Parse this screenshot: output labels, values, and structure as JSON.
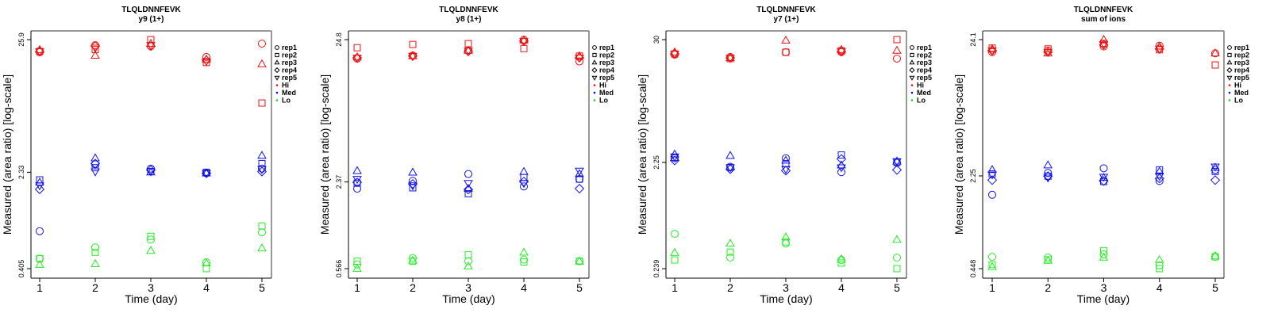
{
  "chart_data": [
    {
      "type": "scatter",
      "title": "TLQLDNNFEVK",
      "subtitle": "y9 (1+)",
      "xlabel": "Time (day)",
      "ylabel": "Measured (area ratio) [log-scale]",
      "yscale": "log",
      "xlim": [
        1,
        5
      ],
      "ylim": [
        0.405,
        25.9
      ],
      "x_ticks": [
        "1",
        "2",
        "3",
        "4",
        "5"
      ],
      "y_ticks": [
        {
          "value": 0.405,
          "label": "0.405"
        },
        {
          "value": 2.33,
          "label": "2.33"
        },
        {
          "value": 25.9,
          "label": "25.9"
        }
      ],
      "legend": [
        "rep1",
        "rep2",
        "rep3",
        "rep4",
        "rep5",
        "Hi",
        "Med",
        "Lo"
      ],
      "legend_position": "right",
      "series": [
        {
          "level": "Hi",
          "rep": "rep1",
          "x": [
            1,
            2,
            3,
            4,
            5
          ],
          "y": [
            20.6,
            23.4,
            23.0,
            18.9,
            24.1
          ]
        },
        {
          "level": "Hi",
          "rep": "rep2",
          "x": [
            1,
            2,
            3,
            4,
            5
          ],
          "y": [
            20.9,
            21.6,
            25.9,
            17.1,
            8.19
          ]
        },
        {
          "level": "Hi",
          "rep": "rep3",
          "x": [
            1,
            2,
            3,
            4,
            5
          ],
          "y": [
            21.5,
            19.4,
            24.1,
            18.1,
            16.6
          ]
        },
        {
          "level": "Hi",
          "rep": "rep4",
          "x": [
            1,
            2,
            3,
            4
          ],
          "y": [
            20.9,
            23.0,
            23.0,
            17.8
          ]
        },
        {
          "level": "Hi",
          "rep": "rep5",
          "x": [
            1,
            2,
            3,
            4
          ],
          "y": [
            20.9,
            22.3,
            23.4,
            17.5
          ]
        },
        {
          "level": "Med",
          "rep": "rep1",
          "x": [
            1,
            2,
            3,
            4,
            5
          ],
          "y": [
            0.8,
            2.69,
            2.49,
            2.29,
            2.49
          ]
        },
        {
          "level": "Med",
          "rep": "rep2",
          "x": [
            1,
            2,
            3,
            4,
            5
          ],
          "y": [
            2.03,
            2.53,
            2.36,
            2.33,
            2.73
          ]
        },
        {
          "level": "Med",
          "rep": "rep3",
          "x": [
            1,
            2,
            3,
            4,
            5
          ],
          "y": [
            1.94,
            3.01,
            2.33,
            2.29,
            3.15
          ]
        },
        {
          "level": "Med",
          "rep": "rep4",
          "x": [
            1,
            2,
            3,
            4,
            5
          ],
          "y": [
            1.71,
            2.73,
            2.43,
            2.29,
            2.36
          ]
        },
        {
          "level": "Med",
          "rep": "rep5",
          "x": [
            1,
            2,
            3,
            4,
            5
          ],
          "y": [
            1.83,
            2.36,
            2.36,
            2.29,
            2.46
          ]
        },
        {
          "level": "Lo",
          "rep": "rep1",
          "x": [
            1,
            2,
            3,
            4,
            5
          ],
          "y": [
            0.486,
            0.595,
            0.687,
            0.454,
            0.783
          ]
        },
        {
          "level": "Lo",
          "rep": "rep2",
          "x": [
            1,
            2,
            3,
            4,
            5
          ],
          "y": [
            0.486,
            0.545,
            0.728,
            0.405,
            0.879
          ]
        },
        {
          "level": "Lo",
          "rep": "rep3",
          "x": [
            1,
            2,
            3,
            4,
            5
          ],
          "y": [
            0.435,
            0.441,
            0.561,
            0.447,
            0.587
          ]
        }
      ]
    },
    {
      "type": "scatter",
      "title": "TLQLDNNFEVK",
      "subtitle": "y8 (1+)",
      "xlabel": "Time (day)",
      "ylabel": "Measured (area ratio) [log-scale]",
      "yscale": "log",
      "xlim": [
        1,
        5
      ],
      "ylim": [
        0.566,
        24.8
      ],
      "x_ticks": [
        "1",
        "2",
        "3",
        "4",
        "5"
      ],
      "y_ticks": [
        {
          "value": 0.566,
          "label": "0.566"
        },
        {
          "value": 2.37,
          "label": "2.37"
        },
        {
          "value": 24.8,
          "label": "24.8"
        }
      ],
      "legend": [
        "rep1",
        "rep2",
        "rep3",
        "rep4",
        "rep5",
        "Hi",
        "Med",
        "Lo"
      ],
      "legend_position": "right",
      "series": [
        {
          "level": "Hi",
          "rep": "rep1",
          "x": [
            1,
            2,
            3,
            4,
            5
          ],
          "y": [
            18.1,
            19.1,
            20.7,
            24.8,
            17.3
          ]
        },
        {
          "level": "Hi",
          "rep": "rep2",
          "x": [
            1,
            2,
            3,
            4,
            5
          ],
          "y": [
            21.7,
            22.9,
            23.2,
            21.4,
            18.9
          ]
        },
        {
          "level": "Hi",
          "rep": "rep3",
          "x": [
            1,
            2,
            3,
            4,
            5
          ],
          "y": [
            18.6,
            18.9,
            20.7,
            24.5,
            18.9
          ]
        },
        {
          "level": "Hi",
          "rep": "rep4",
          "x": [
            1,
            2,
            3,
            4,
            5
          ],
          "y": [
            18.4,
            18.9,
            20.4,
            24.2,
            18.4
          ]
        },
        {
          "level": "Hi",
          "rep": "rep5",
          "x": [
            1,
            2,
            3,
            4,
            5
          ],
          "y": [
            18.4,
            18.9,
            20.7,
            24.2,
            18.4
          ]
        },
        {
          "level": "Med",
          "rep": "rep1",
          "x": [
            1,
            2,
            3,
            4,
            5
          ],
          "y": [
            2.12,
            2.41,
            2.7,
            2.2,
            2.48
          ]
        },
        {
          "level": "Med",
          "rep": "rep2",
          "x": [
            1,
            2,
            3,
            4,
            5
          ],
          "y": [
            2.32,
            2.15,
            1.95,
            2.55,
            2.48
          ]
        },
        {
          "level": "Med",
          "rep": "rep3",
          "x": [
            1,
            2,
            3,
            4,
            5
          ],
          "y": [
            2.84,
            2.77,
            2.12,
            2.8,
            2.7
          ]
        },
        {
          "level": "Med",
          "rep": "rep4",
          "x": [
            1,
            2,
            3,
            4,
            5
          ],
          "y": [
            2.35,
            2.29,
            2.09,
            2.38,
            2.12
          ]
        },
        {
          "level": "Med",
          "rep": "rep5",
          "x": [
            1,
            2,
            3,
            4,
            5
          ],
          "y": [
            2.48,
            2.23,
            2.32,
            2.32,
            2.84
          ]
        },
        {
          "level": "Lo",
          "rep": "rep1",
          "x": [
            1,
            2,
            3,
            4,
            5
          ],
          "y": [
            0.607,
            0.674,
            0.64,
            0.657,
            0.64
          ]
        },
        {
          "level": "Lo",
          "rep": "rep2",
          "x": [
            1,
            2,
            3,
            4,
            5
          ],
          "y": [
            0.64,
            0.64,
            0.711,
            0.632,
            0.64
          ]
        },
        {
          "level": "Lo",
          "rep": "rep3",
          "x": [
            1,
            2,
            3,
            4,
            5
          ],
          "y": [
            0.566,
            0.648,
            0.589,
            0.74,
            0.64
          ]
        }
      ]
    },
    {
      "type": "scatter",
      "title": "TLQLDNNFEVK",
      "subtitle": "y7 (1+)",
      "xlabel": "Time (day)",
      "ylabel": "Measured (area ratio) [log-scale]",
      "yscale": "log",
      "xlim": [
        1,
        5
      ],
      "ylim": [
        0.239,
        30
      ],
      "x_ticks": [
        "1",
        "2",
        "3",
        "4",
        "5"
      ],
      "y_ticks": [
        {
          "value": 0.239,
          "label": "0.239"
        },
        {
          "value": 2.25,
          "label": "2.25"
        },
        {
          "value": 30,
          "label": "30"
        }
      ],
      "legend": [
        "rep1",
        "rep2",
        "rep3",
        "rep4",
        "rep5",
        "Hi",
        "Med",
        "Lo"
      ],
      "legend_position": "right",
      "series": [
        {
          "level": "Hi",
          "rep": "rep1",
          "x": [
            1,
            2,
            3,
            4,
            5
          ],
          "y": [
            21.9,
            20.8,
            23.0,
            23.0,
            20.1
          ]
        },
        {
          "level": "Hi",
          "rep": "rep2",
          "x": [
            1,
            2,
            3,
            4,
            5
          ],
          "y": [
            22.2,
            20.1,
            23.0,
            23.8,
            30.0
          ]
        },
        {
          "level": "Hi",
          "rep": "rep3",
          "x": [
            1,
            2,
            3,
            4,
            5
          ],
          "y": [
            23.0,
            20.4,
            29.5,
            24.2,
            23.8
          ]
        },
        {
          "level": "Hi",
          "rep": "rep4",
          "x": [
            1,
            2,
            4
          ],
          "y": [
            22.2,
            20.4,
            23.4
          ]
        },
        {
          "level": "Hi",
          "rep": "rep5",
          "x": [
            1,
            2,
            4
          ],
          "y": [
            22.2,
            20.4,
            23.4
          ]
        },
        {
          "level": "Med",
          "rep": "rep1",
          "x": [
            1,
            2,
            3,
            4,
            5
          ],
          "y": [
            2.46,
            2.05,
            2.46,
            1.83,
            2.23
          ]
        },
        {
          "level": "Med",
          "rep": "rep2",
          "x": [
            1,
            2,
            3,
            4,
            5
          ],
          "y": [
            2.5,
            2.02,
            2.19,
            2.63,
            2.26
          ]
        },
        {
          "level": "Med",
          "rep": "rep3",
          "x": [
            1,
            2,
            3,
            4,
            5
          ],
          "y": [
            2.67,
            2.59,
            2.34,
            2.12,
            2.3
          ]
        },
        {
          "level": "Med",
          "rep": "rep4",
          "x": [
            1,
            2,
            3,
            4,
            5
          ],
          "y": [
            2.34,
            1.95,
            1.89,
            2.42,
            1.92
          ]
        },
        {
          "level": "Med",
          "rep": "rep5",
          "x": [
            1,
            2,
            3,
            4,
            5
          ],
          "y": [
            2.54,
            2.02,
            1.95,
            2.02,
            2.3
          ]
        },
        {
          "level": "Lo",
          "rep": "rep1",
          "x": [
            1,
            2,
            3,
            4,
            5
          ],
          "y": [
            0.498,
            0.302,
            0.406,
            0.287,
            0.302
          ]
        },
        {
          "level": "Lo",
          "rep": "rep2",
          "x": [
            1,
            2,
            3,
            4,
            5
          ],
          "y": [
            0.287,
            0.339,
            0.42,
            0.269,
            0.239
          ]
        },
        {
          "level": "Lo",
          "rep": "rep3",
          "x": [
            1,
            2,
            3,
            4,
            5
          ],
          "y": [
            0.334,
            0.406,
            0.465,
            0.292,
            0.441
          ]
        }
      ]
    },
    {
      "type": "scatter",
      "title": "TLQLDNNFEVK",
      "subtitle": "sum of ions",
      "xlabel": "Time (day)",
      "ylabel": "Measured (area ratio) [log-scale]",
      "yscale": "log",
      "xlim": [
        1,
        5
      ],
      "ylim": [
        0.448,
        24.1
      ],
      "x_ticks": [
        "1",
        "2",
        "3",
        "4",
        "5"
      ],
      "y_ticks": [
        {
          "value": 0.448,
          "label": "0.448"
        },
        {
          "value": 2.25,
          "label": "2.25"
        },
        {
          "value": 24.1,
          "label": "24.1"
        }
      ],
      "legend": [
        "rep1",
        "rep2",
        "rep3",
        "rep4",
        "rep5",
        "Hi",
        "Med",
        "Lo"
      ],
      "legend_position": "right",
      "series": [
        {
          "level": "Hi",
          "rep": "rep1",
          "x": [
            1,
            2,
            3,
            4,
            5
          ],
          "y": [
            19.4,
            19.9,
            21.4,
            21.7,
            19.0
          ]
        },
        {
          "level": "Hi",
          "rep": "rep2",
          "x": [
            1,
            2,
            3,
            4,
            5
          ],
          "y": [
            20.8,
            20.5,
            22.6,
            20.2,
            15.5
          ]
        },
        {
          "level": "Hi",
          "rep": "rep3",
          "x": [
            1,
            2,
            3,
            4,
            5
          ],
          "y": [
            20.5,
            19.0,
            24.1,
            21.4,
            19.0
          ]
        },
        {
          "level": "Hi",
          "rep": "rep4",
          "x": [
            1,
            2,
            3,
            4
          ],
          "y": [
            19.9,
            19.4,
            22.0,
            20.5
          ]
        },
        {
          "level": "Hi",
          "rep": "rep5",
          "x": [
            1,
            2,
            3,
            4
          ],
          "y": [
            19.9,
            19.4,
            22.3,
            20.5
          ]
        },
        {
          "level": "Med",
          "rep": "rep1",
          "x": [
            1,
            2,
            3,
            4,
            5
          ],
          "y": [
            1.62,
            2.37,
            2.57,
            2.06,
            2.5
          ]
        },
        {
          "level": "Med",
          "rep": "rep2",
          "x": [
            1,
            2,
            3,
            4,
            5
          ],
          "y": [
            2.33,
            2.24,
            2.04,
            2.5,
            2.43
          ]
        },
        {
          "level": "Med",
          "rep": "rep3",
          "x": [
            1,
            2,
            3,
            4,
            5
          ],
          "y": [
            2.5,
            2.71,
            2.18,
            2.43,
            2.6
          ]
        },
        {
          "level": "Med",
          "rep": "rep4",
          "x": [
            1,
            2,
            3,
            4,
            5
          ],
          "y": [
            2.09,
            2.24,
            2.06,
            2.15,
            2.09
          ]
        },
        {
          "level": "Med",
          "rep": "rep5",
          "x": [
            1,
            2,
            3,
            4,
            5
          ],
          "y": [
            2.3,
            2.18,
            2.21,
            2.24,
            2.64
          ]
        },
        {
          "level": "Lo",
          "rep": "rep1",
          "x": [
            1,
            2,
            3,
            4,
            5
          ],
          "y": [
            0.551,
            0.544,
            0.573,
            0.474,
            0.551
          ]
        },
        {
          "level": "Lo",
          "rep": "rep2",
          "x": [
            1,
            2,
            3,
            4,
            5
          ],
          "y": [
            0.481,
            0.522,
            0.613,
            0.448,
            0.551
          ]
        },
        {
          "level": "Lo",
          "rep": "rep3",
          "x": [
            1,
            2,
            3,
            4,
            5
          ],
          "y": [
            0.462,
            0.515,
            0.544,
            0.522,
            0.559
          ]
        }
      ]
    }
  ],
  "legend_items": [
    {
      "label": "rep1",
      "symbol": "circle"
    },
    {
      "label": "rep2",
      "symbol": "square"
    },
    {
      "label": "rep3",
      "symbol": "triangle-up"
    },
    {
      "label": "rep4",
      "symbol": "diamond"
    },
    {
      "label": "rep5",
      "symbol": "triangle-down"
    },
    {
      "label": "Hi",
      "symbol": "dot",
      "color": "#ff0000"
    },
    {
      "label": "Med",
      "symbol": "dot",
      "color": "#0000ff"
    },
    {
      "label": "Lo",
      "symbol": "dot",
      "color": "#00dd00"
    }
  ],
  "colors": {
    "Hi": "#ee1111",
    "Med": "#1111ee",
    "Lo": "#22ee22",
    "frame": "#777777",
    "axis": "#000000"
  },
  "rep_symbols": {
    "rep1": "circle",
    "rep2": "square",
    "rep3": "triangle-up",
    "rep4": "diamond",
    "rep5": "triangle-down"
  }
}
